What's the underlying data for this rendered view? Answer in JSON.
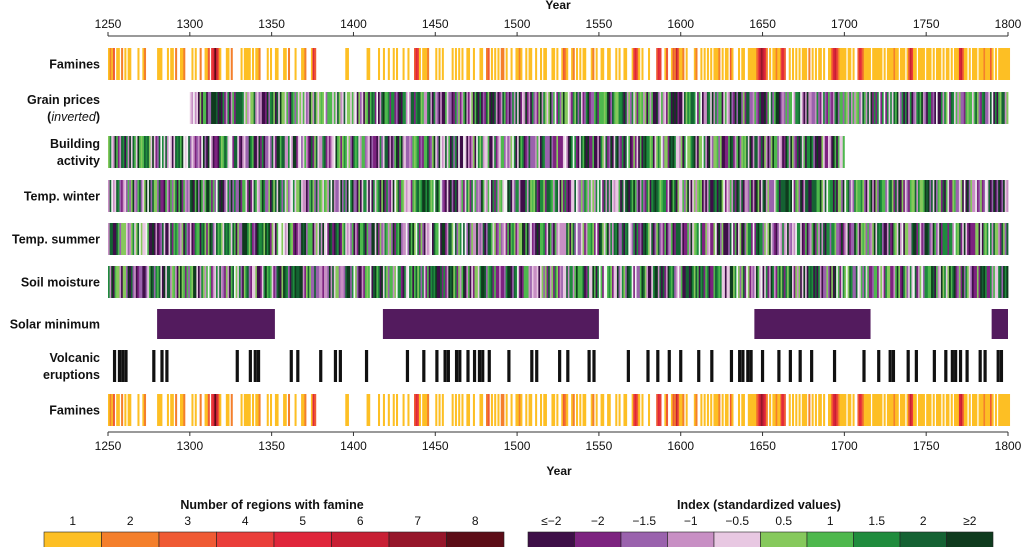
{
  "chart_data": {
    "type": "heatmap",
    "x_axis": {
      "title": "Year",
      "range": [
        1250,
        1800
      ],
      "ticks": [
        1250,
        1300,
        1350,
        1400,
        1450,
        1500,
        1550,
        1600,
        1650,
        1700,
        1750,
        1800
      ],
      "tick_labels": [
        "1250",
        "1300",
        "1350",
        "1400",
        "1450",
        "1500",
        "1550",
        "1600",
        "1650",
        "1700",
        "1750",
        "1800"
      ]
    },
    "rows": [
      {
        "id": "famines_top",
        "label_lines": [
          "Famines"
        ],
        "kind": "famine",
        "start": 1250,
        "end": 1800
      },
      {
        "id": "grain_prices",
        "label_lines": [
          "Grain prices",
          "(inverted)"
        ],
        "italic_word": "inverted",
        "kind": "index",
        "start": 1300,
        "end": 1800
      },
      {
        "id": "building_activity",
        "label_lines": [
          "Building",
          "activity"
        ],
        "kind": "index",
        "start": 1250,
        "end": 1700
      },
      {
        "id": "temp_winter",
        "label_lines": [
          "Temp. winter"
        ],
        "kind": "index",
        "start": 1250,
        "end": 1800
      },
      {
        "id": "temp_summer",
        "label_lines": [
          "Temp. summer"
        ],
        "kind": "index",
        "start": 1250,
        "end": 1800
      },
      {
        "id": "soil_moisture",
        "label_lines": [
          "Soil moisture"
        ],
        "kind": "index",
        "start": 1250,
        "end": 1800
      },
      {
        "id": "solar_minimum",
        "label_lines": [
          "Solar minimum"
        ],
        "kind": "periods",
        "color": "#531b5e",
        "periods": [
          [
            1280,
            1352
          ],
          [
            1418,
            1550
          ],
          [
            1645,
            1716
          ],
          [
            1790,
            1800
          ]
        ]
      },
      {
        "id": "volcanic_eruptions",
        "label_lines": [
          "Volcanic",
          "eruptions"
        ],
        "kind": "events",
        "color": "#111111",
        "years": [
          1254,
          1257,
          1259,
          1261,
          1278,
          1283,
          1286,
          1329,
          1337,
          1340,
          1342,
          1362,
          1366,
          1380,
          1389,
          1392,
          1408,
          1433,
          1443,
          1451,
          1456,
          1458,
          1463,
          1465,
          1470,
          1474,
          1477,
          1479,
          1483,
          1495,
          1509,
          1512,
          1526,
          1531,
          1544,
          1547,
          1568,
          1580,
          1586,
          1593,
          1600,
          1611,
          1619,
          1631,
          1636,
          1638,
          1641,
          1643,
          1650,
          1660,
          1667,
          1673,
          1680,
          1694,
          1712,
          1721,
          1728,
          1730,
          1739,
          1744,
          1755,
          1762,
          1766,
          1768,
          1771,
          1775,
          1783,
          1786,
          1794,
          1796
        ]
      },
      {
        "id": "famines_bottom",
        "label_lines": [
          "Famines"
        ],
        "kind": "famine",
        "start": 1250,
        "end": 1800
      }
    ],
    "famine_years": {
      "1250": 1,
      "1251": 2,
      "1252": 1,
      "1253": 3,
      "1255": 1,
      "1256": 1,
      "1258": 2,
      "1260": 1,
      "1262": 1,
      "1263": 1,
      "1268": 1,
      "1271": 1,
      "1272": 2,
      "1280": 1,
      "1281": 1,
      "1282": 1,
      "1286": 1,
      "1288": 1,
      "1289": 1,
      "1291": 2,
      "1294": 1,
      "1295": 1,
      "1296": 2,
      "1301": 1,
      "1303": 1,
      "1306": 2,
      "1309": 1,
      "1310": 1,
      "1311": 3,
      "1313": 4,
      "1314": 5,
      "1315": 8,
      "1316": 6,
      "1317": 3,
      "1318": 1,
      "1322": 1,
      "1323": 1,
      "1325": 2,
      "1331": 1,
      "1333": 1,
      "1334": 1,
      "1335": 1,
      "1336": 1,
      "1338": 1,
      "1340": 1,
      "1341": 1,
      "1342": 2,
      "1347": 1,
      "1349": 1,
      "1352": 1,
      "1353": 1,
      "1357": 1,
      "1358": 1,
      "1360": 2,
      "1364": 1,
      "1368": 1,
      "1369": 1,
      "1370": 2,
      "1374": 1,
      "1375": 5,
      "1376": 3,
      "1395": 1,
      "1396": 1,
      "1408": 1,
      "1409": 1,
      "1415": 1,
      "1418": 1,
      "1421": 1,
      "1424": 1,
      "1426": 1,
      "1430": 1,
      "1433": 1,
      "1437": 3,
      "1438": 5,
      "1439": 4,
      "1440": 1,
      "1442": 1,
      "1443": 1,
      "1444": 1,
      "1445": 2,
      "1450": 1,
      "1452": 1,
      "1454": 1,
      "1460": 1,
      "1462": 1,
      "1464": 1,
      "1466": 1,
      "1469": 1,
      "1470": 1,
      "1473": 1,
      "1477": 1,
      "1478": 1,
      "1481": 2,
      "1482": 3,
      "1484": 1,
      "1486": 1,
      "1488": 1,
      "1490": 2,
      "1491": 2,
      "1493": 1,
      "1496": 1,
      "1499": 1,
      "1500": 1,
      "1501": 2,
      "1502": 1,
      "1505": 1,
      "1507": 1,
      "1508": 1,
      "1511": 1,
      "1514": 1,
      "1516": 1,
      "1517": 1,
      "1521": 1,
      "1522": 1,
      "1524": 1,
      "1527": 1,
      "1528": 3,
      "1529": 2,
      "1530": 1,
      "1533": 1,
      "1534": 2,
      "1536": 1,
      "1538": 1,
      "1540": 1,
      "1541": 1,
      "1545": 1,
      "1546": 2,
      "1548": 1,
      "1551": 1,
      "1552": 1,
      "1555": 1,
      "1556": 1,
      "1560": 1,
      "1562": 1,
      "1565": 1,
      "1566": 1,
      "1570": 1,
      "1571": 4,
      "1572": 5,
      "1573": 3,
      "1574": 1,
      "1576": 1,
      "1580": 1,
      "1585": 3,
      "1586": 5,
      "1587": 4,
      "1590": 1,
      "1591": 3,
      "1594": 1,
      "1595": 3,
      "1596": 2,
      "1597": 6,
      "1598": 3,
      "1599": 1,
      "1600": 1,
      "1601": 2,
      "1603": 1,
      "1608": 1,
      "1609": 2,
      "1612": 1,
      "1614": 1,
      "1616": 1,
      "1618": 1,
      "1620": 1,
      "1621": 1,
      "1622": 1,
      "1623": 2,
      "1625": 1,
      "1627": 1,
      "1628": 1,
      "1630": 3,
      "1631": 1,
      "1635": 1,
      "1637": 1,
      "1638": 1,
      "1641": 1,
      "1642": 1,
      "1643": 1,
      "1644": 1,
      "1645": 1,
      "1646": 2,
      "1647": 4,
      "1648": 6,
      "1649": 7,
      "1650": 6,
      "1651": 5,
      "1652": 2,
      "1654": 1,
      "1656": 1,
      "1657": 1,
      "1658": 2,
      "1659": 1,
      "1660": 1,
      "1661": 4,
      "1662": 5,
      "1663": 3,
      "1666": 1,
      "1668": 1,
      "1670": 1,
      "1672": 1,
      "1674": 1,
      "1675": 1,
      "1676": 1,
      "1678": 2,
      "1680": 1,
      "1682": 1,
      "1684": 1,
      "1685": 1,
      "1687": 1,
      "1690": 1,
      "1691": 1,
      "1692": 3,
      "1693": 5,
      "1694": 6,
      "1695": 4,
      "1696": 2,
      "1697": 1,
      "1698": 1,
      "1699": 1,
      "1700": 1,
      "1702": 1,
      "1703": 1,
      "1705": 1,
      "1708": 3,
      "1709": 5,
      "1710": 4,
      "1711": 2,
      "1712": 1,
      "1713": 1,
      "1714": 1,
      "1715": 1,
      "1717": 1,
      "1718": 1,
      "1719": 1,
      "1720": 1,
      "1721": 1,
      "1722": 1,
      "1724": 1,
      "1726": 1,
      "1727": 1,
      "1728": 1,
      "1729": 1,
      "1730": 2,
      "1731": 1,
      "1732": 1,
      "1734": 1,
      "1735": 1,
      "1736": 1,
      "1738": 1,
      "1739": 3,
      "1740": 6,
      "1741": 4,
      "1742": 1,
      "1743": 1,
      "1745": 1,
      "1746": 1,
      "1747": 1,
      "1748": 1,
      "1750": 1,
      "1751": 1,
      "1752": 1,
      "1754": 1,
      "1756": 1,
      "1757": 1,
      "1758": 1,
      "1760": 1,
      "1762": 1,
      "1763": 1,
      "1765": 1,
      "1767": 1,
      "1768": 1,
      "1769": 1,
      "1770": 5,
      "1771": 6,
      "1772": 3,
      "1773": 1,
      "1774": 1,
      "1776": 1,
      "1778": 1,
      "1779": 1,
      "1780": 1,
      "1782": 1,
      "1783": 1,
      "1784": 1,
      "1785": 2,
      "1786": 1,
      "1787": 1,
      "1788": 1,
      "1789": 3,
      "1790": 1,
      "1792": 1,
      "1794": 1,
      "1795": 1,
      "1796": 1,
      "1797": 1,
      "1798": 1,
      "1799": 1,
      "1800": 1
    },
    "legend_famine": {
      "title": "Number of regions with famine",
      "labels": [
        "1",
        "2",
        "3",
        "4",
        "5",
        "6",
        "7",
        "8"
      ],
      "colors": [
        "#fdbf24",
        "#f47f2c",
        "#ef5a34",
        "#ea3e3a",
        "#e0263b",
        "#c81f34",
        "#96162a",
        "#5c0d17"
      ]
    },
    "legend_index": {
      "title": "Index (standardized values)",
      "labels": [
        "≤−2",
        "−2",
        "−1.5",
        "−1",
        "−0.5",
        "0.5",
        "1",
        "1.5",
        "2",
        "≥2"
      ],
      "colors": [
        "#3e0f48",
        "#7d2380",
        "#9a62ad",
        "#c88fc4",
        "#e8c8e2",
        "#86c95c",
        "#4eb84d",
        "#1f8c3d",
        "#156233",
        "#0f3b1e"
      ]
    },
    "index_white": "#f4f4f4"
  }
}
